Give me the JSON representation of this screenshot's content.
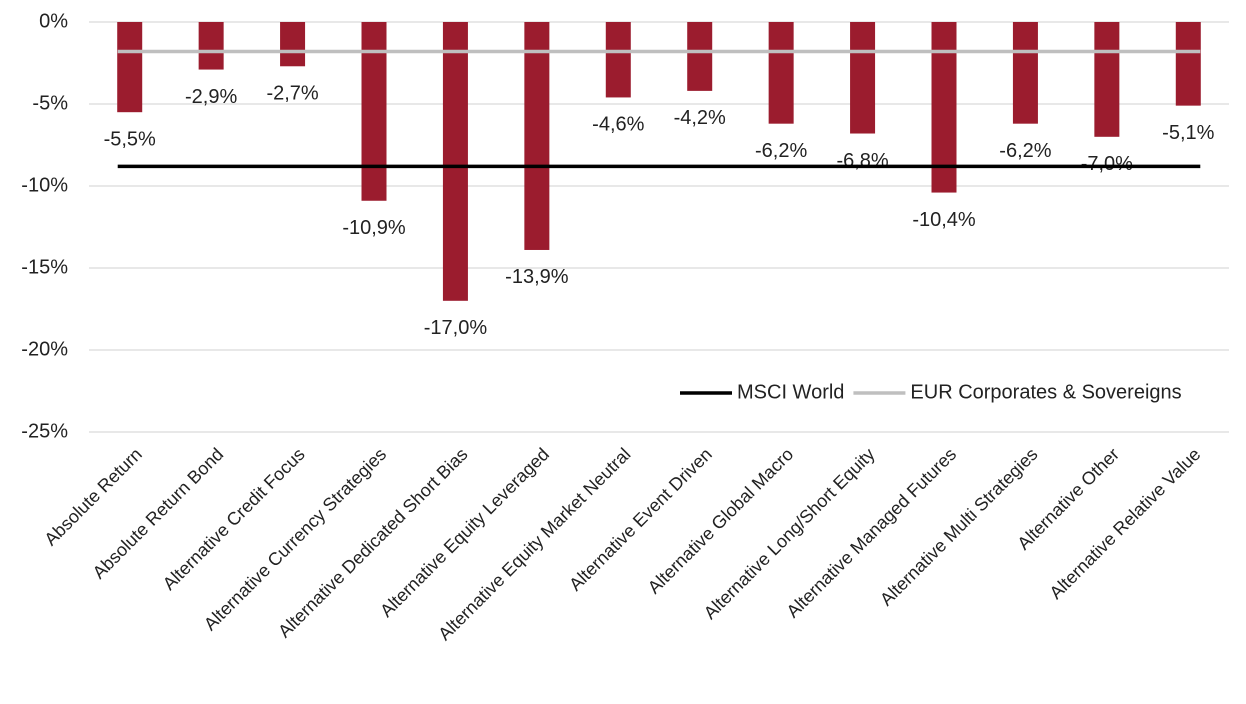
{
  "chart_data": {
    "type": "bar",
    "categories": [
      "Absolute Return",
      "Absolute Return Bond",
      "Alternative Credit Focus",
      "Alternative Currency Strategies",
      "Alternative Dedicated Short Bias",
      "Alternative Equity Leveraged",
      "Alternative Equity Market Neutral",
      "Alternative Event Driven",
      "Alternative Global Macro",
      "Alternative Long/Short Equity",
      "Alternative Managed Futures",
      "Alternative Multi Strategies",
      "Alternative Other",
      "Alternative Relative Value"
    ],
    "values": [
      -5.5,
      -2.9,
      -2.7,
      -10.9,
      -17.0,
      -13.9,
      -4.6,
      -4.2,
      -6.2,
      -6.8,
      -10.4,
      -6.2,
      -7.0,
      -5.1
    ],
    "value_labels": [
      "-5,5%",
      "-2,9%",
      "-2,7%",
      "-10,9%",
      "-17,0%",
      "-13,9%",
      "-4,6%",
      "-4,2%",
      "-6,2%",
      "-6,8%",
      "-10,4%",
      "-6,2%",
      "-7,0%",
      "-5,1%"
    ],
    "color": "#9b1c2e",
    "reference_lines": [
      {
        "name": "MSCI World",
        "color": "#000000",
        "value": -8.8
      },
      {
        "name": "EUR Corporates & Sovereigns",
        "color": "#bfbfbf",
        "value": -1.8
      }
    ],
    "ylim": [
      -25,
      0
    ],
    "yticks": [
      {
        "value": 0,
        "label": "0%"
      },
      {
        "value": -5,
        "label": "-5%"
      },
      {
        "value": -10,
        "label": "-10%"
      },
      {
        "value": -15,
        "label": "-15%"
      },
      {
        "value": -20,
        "label": "-20%"
      },
      {
        "value": -25,
        "label": "-25%"
      }
    ],
    "grid": true,
    "legend": "right"
  }
}
